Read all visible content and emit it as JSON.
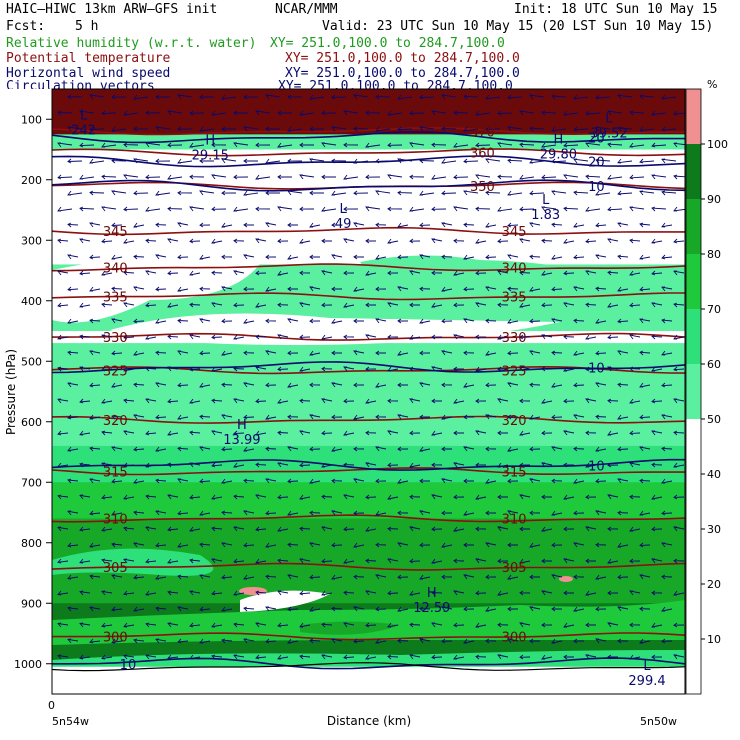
{
  "header": {
    "model": "HAIC–HIWC 13km ARW–GFS init",
    "org": "NCAR/MMM",
    "init": "Init: 18 UTC Sun 10 May 15",
    "fcst_label": "Fcst:",
    "fcst_value": "5 h",
    "valid": "Valid: 23 UTC Sun 10 May 15 (20 LST Sun 10 May 15)"
  },
  "legend": [
    {
      "name": "Relative humidity (w.r.t. water)",
      "xy": "XY= 251.0,100.0 to 284.7,100.0",
      "color": "#1f9b1f"
    },
    {
      "name": "Potential temperature",
      "xy": "XY= 251.0,100.0 to 284.7,100.0",
      "color": "#8b1010"
    },
    {
      "name": "Horizontal wind speed",
      "xy": "XY= 251.0,100.0 to 284.7,100.0",
      "color": "#0a0a6e"
    },
    {
      "name": "Circulation vectors",
      "xy": "XY= 251.0,100.0 to 284.7,100.0",
      "color": "#0a0a6e"
    }
  ],
  "chart_data": {
    "type": "heatmap",
    "ylabel": "Pressure (hPa)",
    "xlabel": "Distance (km)",
    "y_ticks": [
      100,
      200,
      300,
      400,
      500,
      600,
      700,
      800,
      900,
      1000
    ],
    "y_range": [
      50,
      1050
    ],
    "x_tick": "0",
    "x_start_label": "5n54w",
    "x_end_label": "5n50w",
    "colorbar": {
      "unit": "%",
      "ticks": [
        10,
        20,
        30,
        40,
        50,
        60,
        70,
        80,
        90,
        100
      ],
      "bins": [
        {
          "from": 0,
          "to": 50,
          "color": "#ffffff"
        },
        {
          "from": 50,
          "to": 60,
          "color": "#5af0a0"
        },
        {
          "from": 60,
          "to": 70,
          "color": "#2ee07a"
        },
        {
          "from": 70,
          "to": 80,
          "color": "#1fc93c"
        },
        {
          "from": 80,
          "to": 90,
          "color": "#18a828"
        },
        {
          "from": 90,
          "to": 100,
          "color": "#0d7a1c"
        },
        {
          "from": 100,
          "to": 110,
          "color": "#f09090"
        }
      ]
    },
    "theta_contours": [
      {
        "label": "345",
        "p": 285
      },
      {
        "label": "340",
        "p": 345
      },
      {
        "label": "335",
        "p": 393
      },
      {
        "label": "330",
        "p": 460
      },
      {
        "label": "325",
        "p": 515
      },
      {
        "label": "320",
        "p": 597
      },
      {
        "label": "315",
        "p": 682
      },
      {
        "label": "310",
        "p": 760
      },
      {
        "label": "305",
        "p": 840
      },
      {
        "label": "300",
        "p": 955
      },
      {
        "label": "350",
        "p": 210
      },
      {
        "label": "360",
        "p": 155
      },
      {
        "label": "370",
        "p": 120
      }
    ],
    "wind_contours": [
      {
        "label": "10",
        "p": 510
      },
      {
        "label": "10",
        "p": 672
      },
      {
        "label": "10",
        "p": 1000
      },
      {
        "label": "10",
        "p": 210
      },
      {
        "label": "20",
        "p": 170
      },
      {
        "label": "20",
        "p": 130
      }
    ],
    "highs_lows": [
      {
        "type": "H",
        "value": "13.99",
        "x": 0.3,
        "p": 612
      },
      {
        "type": "H",
        "value": "12.59",
        "x": 0.6,
        "p": 890
      },
      {
        "type": "L",
        "value": "49",
        "x": 0.46,
        "p": 255
      },
      {
        "type": "L",
        "value": "1.83",
        "x": 0.78,
        "p": 240
      },
      {
        "type": "H",
        "value": "29.80",
        "x": 0.8,
        "p": 140
      },
      {
        "type": "H",
        "value": "29.15",
        "x": 0.25,
        "p": 142
      },
      {
        "type": "L",
        "value": "299.4",
        "x": 0.94,
        "p": 1010
      },
      {
        "type": "L",
        "value": "39.52",
        "x": 0.88,
        "p": 105
      },
      {
        "type": "L",
        "value": "242",
        "x": 0.05,
        "p": 100
      }
    ]
  }
}
